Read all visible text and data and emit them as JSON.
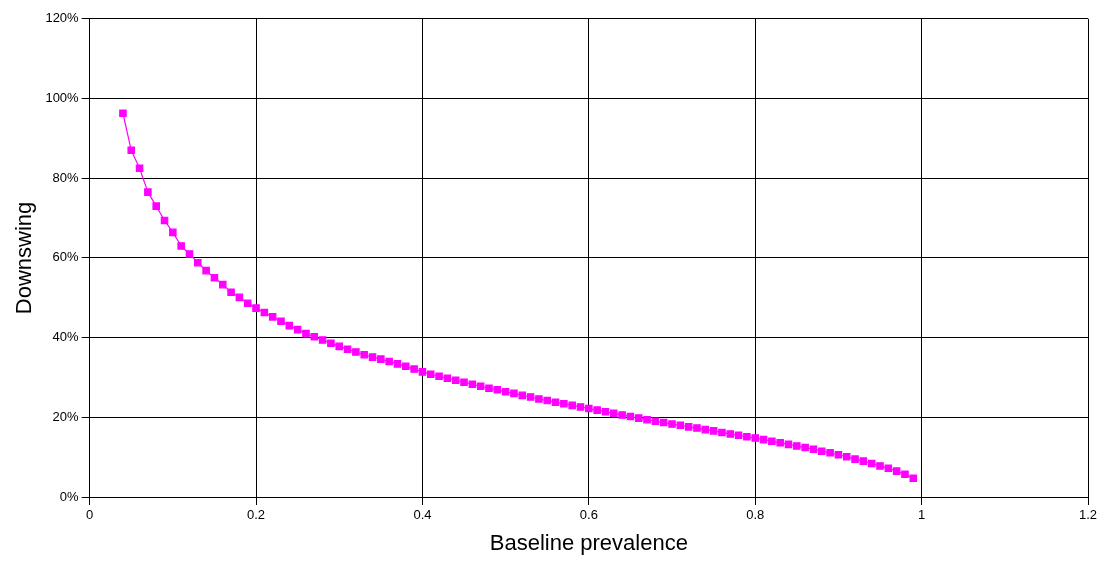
{
  "chart_data": {
    "type": "line",
    "xlabel": "Baseline prevalence",
    "ylabel": "Downswing",
    "x": [
      0.04,
      0.05,
      0.06,
      0.07,
      0.08,
      0.09,
      0.1,
      0.11,
      0.12,
      0.13,
      0.14,
      0.15,
      0.16,
      0.17,
      0.18,
      0.19,
      0.2,
      0.21,
      0.22,
      0.23,
      0.24,
      0.25,
      0.26,
      0.27,
      0.28,
      0.29,
      0.3,
      0.31,
      0.32,
      0.33,
      0.34,
      0.35,
      0.36,
      0.37,
      0.38,
      0.39,
      0.4,
      0.41,
      0.42,
      0.43,
      0.44,
      0.45,
      0.46,
      0.47,
      0.48,
      0.49,
      0.5,
      0.51,
      0.52,
      0.53,
      0.54,
      0.55,
      0.56,
      0.57,
      0.58,
      0.59,
      0.6,
      0.61,
      0.62,
      0.63,
      0.64,
      0.65,
      0.66,
      0.67,
      0.68,
      0.69,
      0.7,
      0.71,
      0.72,
      0.73,
      0.74,
      0.75,
      0.76,
      0.77,
      0.78,
      0.79,
      0.8,
      0.81,
      0.82,
      0.83,
      0.84,
      0.85,
      0.86,
      0.87,
      0.88,
      0.89,
      0.9,
      0.91,
      0.92,
      0.93,
      0.94,
      0.95,
      0.96,
      0.97,
      0.98,
      0.99
    ],
    "series": [
      {
        "color": "#ff00ff",
        "values": [
          96.3,
          87,
          82.5,
          76.5,
          73,
          69.4,
          66.4,
          63,
          61,
          58.8,
          56.8,
          55,
          53.3,
          51.4,
          50.1,
          48.6,
          47.4,
          46.3,
          45.2,
          44.1,
          43,
          42,
          41,
          40.2,
          39.4,
          38.6,
          37.8,
          37.1,
          36.4,
          35.7,
          35.1,
          34.6,
          34,
          33.4,
          32.8,
          32.1,
          31.4,
          30.8,
          30.3,
          29.8,
          29.3,
          28.8,
          28.3,
          27.8,
          27.3,
          26.9,
          26.4,
          26,
          25.5,
          25.1,
          24.6,
          24.2,
          23.8,
          23.4,
          23,
          22.6,
          22.2,
          21.8,
          21.4,
          21,
          20.6,
          20.2,
          19.8,
          19.4,
          19,
          18.7,
          18.3,
          18,
          17.6,
          17.3,
          16.9,
          16.6,
          16.2,
          15.8,
          15.5,
          15.1,
          14.8,
          14.4,
          14,
          13.6,
          13.2,
          12.8,
          12.4,
          12,
          11.5,
          11.1,
          10.6,
          10.1,
          9.5,
          9,
          8.4,
          7.8,
          7.2,
          6.5,
          5.7,
          4.7
        ]
      }
    ],
    "xlim": [
      0,
      1.2
    ],
    "xticks": [
      0,
      0.2,
      0.4,
      0.6,
      0.8,
      1,
      1.2
    ],
    "ylim": [
      0,
      120
    ],
    "yticks": [
      {
        "value": 0,
        "label": "0%"
      },
      {
        "value": 20,
        "label": "20%"
      },
      {
        "value": 40,
        "label": "40%"
      },
      {
        "value": 60,
        "label": "60%"
      },
      {
        "value": 80,
        "label": "80%"
      },
      {
        "value": 100,
        "label": "100%"
      },
      {
        "value": 120,
        "label": "120%"
      }
    ],
    "grid": true,
    "marker": "square",
    "line_style": "solid",
    "legend": false
  }
}
